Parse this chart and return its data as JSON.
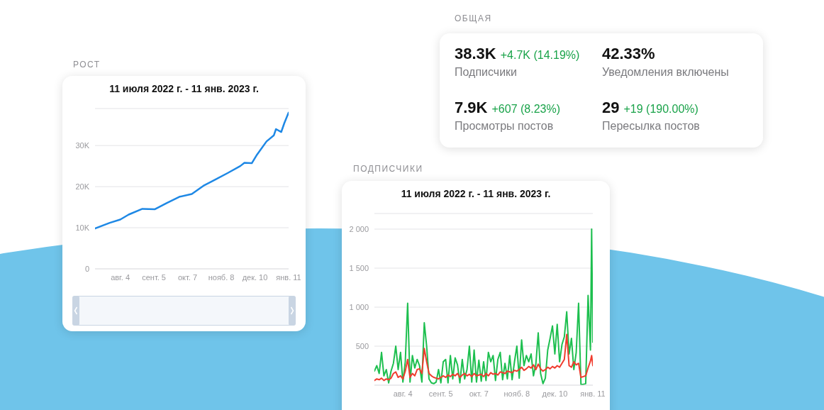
{
  "chart_data": [
    {
      "type": "line",
      "title": "РОСТ",
      "subtitle": "11 июля 2022 г. - 11 янв. 2023 г.",
      "x": [
        "2022-07-11",
        "2022-07-25",
        "2022-08-04",
        "2022-08-12",
        "2022-08-25",
        "2022-09-06",
        "2022-09-17",
        "2022-09-29",
        "2022-10-11",
        "2022-10-22",
        "2022-11-03",
        "2022-11-14",
        "2022-11-26",
        "2022-11-30",
        "2022-12-07",
        "2022-12-12",
        "2022-12-21",
        "2022-12-28",
        "2022-12-30",
        "2023-01-04",
        "2023-01-07",
        "2023-01-11"
      ],
      "values": [
        9800,
        11200,
        12000,
        13200,
        14600,
        14500,
        16000,
        17500,
        18200,
        20200,
        21800,
        23300,
        25000,
        25800,
        25700,
        27800,
        31000,
        32500,
        34000,
        33300,
        35500,
        38000
      ],
      "color": "#1e88e5",
      "xlim": [
        "2022-07-11",
        "2023-01-11"
      ],
      "xticks": [
        {
          "value": "2022-08-04",
          "label": "авг. 4"
        },
        {
          "value": "2022-09-05",
          "label": "сент. 5"
        },
        {
          "value": "2022-10-07",
          "label": "окт. 7"
        },
        {
          "value": "2022-11-08",
          "label": "нояб. 8"
        },
        {
          "value": "2022-12-10",
          "label": "дек. 10"
        },
        {
          "value": "2023-01-11",
          "label": "янв. 11"
        }
      ],
      "ylim": [
        0,
        39000
      ],
      "yticks": [
        0,
        {
          "value": 10000,
          "label": "10K"
        },
        {
          "value": 20000,
          "label": "20K"
        },
        {
          "value": 30000,
          "label": "30K"
        }
      ],
      "grid": "y"
    },
    {
      "type": "other",
      "title": "ОБЩАЯ",
      "categories": [
        "Подписчики",
        "Уведомления включены",
        "Просмотры постов",
        "Пересылка постов"
      ],
      "value_labels": [
        "38.3K",
        "42.33%",
        "7.9K",
        "29"
      ],
      "color": "#1aa34a",
      "annotations": [
        {
          "text": "+4.7K (14.19%)",
          "x": "Подписчики"
        },
        {
          "text": "+607 (8.23%)",
          "x": "Просмотры постов"
        },
        {
          "text": "+19 (190.00%)",
          "x": "Пересылка постов"
        }
      ]
    },
    {
      "type": "line",
      "title": "ПОДПИСЧИКИ",
      "subtitle": "11 июля 2022 г. - 11 янв. 2023 г.",
      "x": [
        "2022-07-11",
        "2022-07-13",
        "2022-07-15",
        "2022-07-17",
        "2022-07-19",
        "2022-07-21",
        "2022-07-23",
        "2022-07-25",
        "2022-07-27",
        "2022-07-29",
        "2022-07-31",
        "2022-08-02",
        "2022-08-04",
        "2022-08-06",
        "2022-08-08",
        "2022-08-10",
        "2022-08-12",
        "2022-08-14",
        "2022-08-16",
        "2022-08-18",
        "2022-08-20",
        "2022-08-22",
        "2022-08-24",
        "2022-08-26",
        "2022-08-28",
        "2022-08-30",
        "2022-09-01",
        "2022-09-03",
        "2022-09-05",
        "2022-09-07",
        "2022-09-09",
        "2022-09-11",
        "2022-09-13",
        "2022-09-15",
        "2022-09-17",
        "2022-09-19",
        "2022-09-21",
        "2022-09-23",
        "2022-09-25",
        "2022-09-27",
        "2022-09-29",
        "2022-10-01",
        "2022-10-03",
        "2022-10-05",
        "2022-10-07",
        "2022-10-09",
        "2022-10-11",
        "2022-10-13",
        "2022-10-15",
        "2022-10-17",
        "2022-10-19",
        "2022-10-21",
        "2022-10-23",
        "2022-10-25",
        "2022-10-27",
        "2022-10-29",
        "2022-10-31",
        "2022-11-02",
        "2022-11-04",
        "2022-11-06",
        "2022-11-08",
        "2022-11-10",
        "2022-11-12",
        "2022-11-14",
        "2022-11-16",
        "2022-11-18",
        "2022-11-20",
        "2022-11-22",
        "2022-11-24",
        "2022-11-26",
        "2022-11-28",
        "2022-11-30",
        "2022-12-02",
        "2022-12-04",
        "2022-12-06",
        "2022-12-08",
        "2022-12-10",
        "2022-12-12",
        "2022-12-14",
        "2022-12-16",
        "2022-12-18",
        "2022-12-20",
        "2022-12-22",
        "2022-12-24",
        "2022-12-26",
        "2022-12-28",
        "2022-12-30",
        "2023-01-01",
        "2023-01-03",
        "2023-01-05",
        "2023-01-07",
        "2023-01-09",
        "2023-01-10",
        "2023-01-11"
      ],
      "series": [
        {
          "color": "#1dbf4f",
          "values": [
            180,
            250,
            150,
            420,
            120,
            200,
            30,
            180,
            280,
            500,
            200,
            420,
            40,
            300,
            1050,
            40,
            380,
            220,
            330,
            250,
            40,
            800,
            500,
            80,
            30,
            20,
            40,
            200,
            30,
            300,
            330,
            30,
            380,
            80,
            350,
            260,
            30,
            330,
            80,
            200,
            500,
            40,
            450,
            40,
            320,
            50,
            300,
            60,
            420,
            300,
            380,
            60,
            330,
            420,
            70,
            280,
            80,
            380,
            70,
            300,
            500,
            90,
            580,
            250,
            380,
            300,
            400,
            120,
            270,
            670,
            150,
            20,
            90,
            450,
            600,
            760,
            400,
            780,
            300,
            520,
            620,
            940,
            400,
            600,
            200,
            420,
            1050,
            10,
            10,
            20,
            1150,
            450,
            2000,
            550
          ]
        },
        {
          "color": "#f03c2e",
          "values": [
            60,
            80,
            70,
            90,
            60,
            80,
            70,
            90,
            150,
            170,
            100,
            120,
            80,
            180,
            330,
            100,
            150,
            120,
            200,
            210,
            150,
            470,
            300,
            150,
            120,
            100,
            90,
            80,
            100,
            120,
            100,
            130,
            110,
            140,
            120,
            150,
            100,
            130,
            150,
            120,
            140,
            110,
            150,
            120,
            130,
            140,
            110,
            150,
            120,
            160,
            140,
            150,
            130,
            170,
            160,
            150,
            180,
            170,
            160,
            190,
            180,
            200,
            230,
            190,
            210,
            240,
            220,
            260,
            200,
            270,
            210,
            180,
            200,
            230,
            210,
            240,
            220,
            250,
            230,
            280,
            330,
            650,
            250,
            230,
            300,
            260,
            280,
            100,
            110,
            120,
            220,
            310,
            380,
            250
          ]
        }
      ],
      "xlim": [
        "2022-07-11",
        "2023-01-11"
      ],
      "xticks": [
        {
          "value": "2022-08-04",
          "label": "авг. 4"
        },
        {
          "value": "2022-09-05",
          "label": "сент. 5"
        },
        {
          "value": "2022-10-07",
          "label": "окт. 7"
        },
        {
          "value": "2022-11-08",
          "label": "нояб. 8"
        },
        {
          "value": "2022-12-10",
          "label": "дек. 10"
        },
        {
          "value": "2023-01-11",
          "label": "янв. 11"
        }
      ],
      "ylim": [
        0,
        2200
      ],
      "yticks": [
        {
          "value": 500,
          "label": "500"
        },
        {
          "value": 1000,
          "label": "1 000"
        },
        {
          "value": 1500,
          "label": "1 500"
        },
        {
          "value": 2000,
          "label": "2 000"
        }
      ],
      "grid": "y"
    }
  ]
}
